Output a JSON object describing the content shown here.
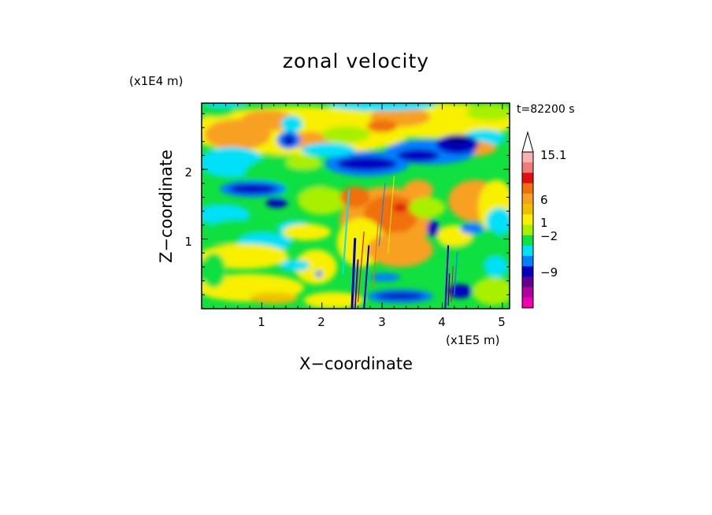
{
  "chart_data": {
    "type": "heatmap",
    "title": "zonal velocity",
    "time_label": "t=82200 s",
    "xlabel": "X−coordinate",
    "ylabel": "Z−coordinate",
    "x_scale_label": "(x1E5 m)",
    "y_scale_label": "(x1E4 m)",
    "xlim": [
      0,
      5.12
    ],
    "ylim": [
      0,
      2.95
    ],
    "x_ticks": [
      "1",
      "2",
      "3",
      "4",
      "5"
    ],
    "y_ticks": [
      "1",
      "2"
    ],
    "colorbar": {
      "tick_labels": [
        "15.1",
        "6",
        "1",
        "−2",
        "−9"
      ],
      "levels_top_to_bottom": [
        15.1,
        12,
        9,
        6,
        4,
        2,
        1,
        0.5,
        -0.5,
        -1,
        -2,
        -3,
        -6,
        -9,
        -12
      ],
      "colors_top_to_bottom": [
        "#f6b2b2",
        "#ef7b7b",
        "#e01010",
        "#f07010",
        "#f8a020",
        "#f0c000",
        "#f8f000",
        "#a8f000",
        "#10e040",
        "#00e0f8",
        "#0080ff",
        "#0000c0",
        "#600090",
        "#b000a0",
        "#f000b0"
      ]
    },
    "field_features": [
      {
        "region": "upper layer (z 2.2-2.9)",
        "tendency": "mostly positive, yellow-orange with scattered cyan/green"
      },
      {
        "region": "band near z~2.1, x 2.0-4.5",
        "tendency": "strong negative, dark blue"
      },
      {
        "region": "x 2.4-3.8, z 0.3-1.8",
        "tendency": "positive core, orange-red"
      },
      {
        "region": "bottom near x 2.5-4.2",
        "tendency": "negative, dark blue/purple streaks"
      }
    ]
  }
}
